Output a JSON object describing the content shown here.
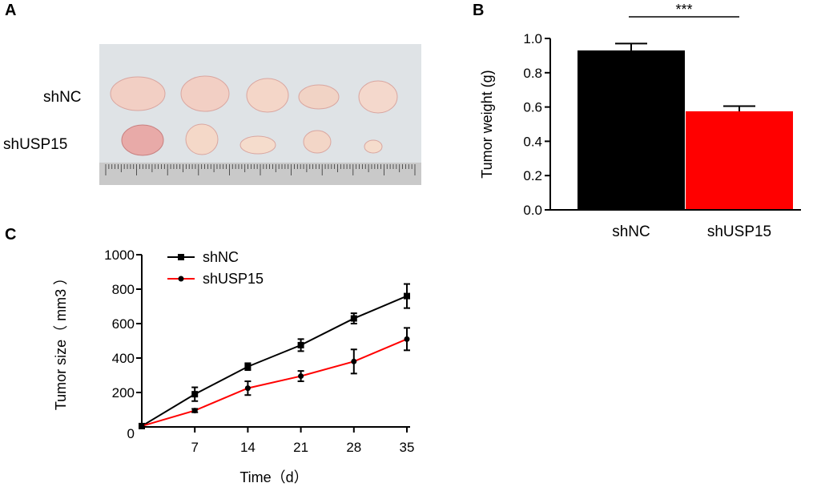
{
  "panels": {
    "a": {
      "letter": "A",
      "row_labels": [
        "shNC",
        "shUSP15"
      ]
    },
    "b": {
      "letter": "B"
    },
    "c": {
      "letter": "C"
    }
  },
  "colors": {
    "shNC": "#000000",
    "shUSP15": "#ff0000",
    "photo_bg": "#dfe3e6",
    "tissue": "#f2cfc4"
  },
  "chart_data": [
    {
      "type": "bar",
      "title": "",
      "xlabel": "",
      "ylabel": "Tumor weight (g)",
      "categories": [
        "shNC",
        "shUSP15"
      ],
      "values": [
        0.93,
        0.575
      ],
      "errors": [
        0.04,
        0.03
      ],
      "ylim": [
        0,
        1.0
      ],
      "yticks": [
        "0.0",
        "0.2",
        "0.4",
        "0.6",
        "0.8",
        "1.0"
      ],
      "significance": "***"
    },
    {
      "type": "line",
      "title": "",
      "xlabel": "Time（d）",
      "ylabel": "Tumor size（ mm3 ）",
      "x": [
        0,
        7,
        14,
        21,
        28,
        35
      ],
      "xticks": [
        "7",
        "14",
        "21",
        "28",
        "35"
      ],
      "yticks": [
        "0",
        "200",
        "400",
        "600",
        "800",
        "1000"
      ],
      "ylim": [
        0,
        1000
      ],
      "legend_position": "top-left",
      "series": [
        {
          "name": "shNC",
          "marker": "square",
          "values": [
            5,
            190,
            350,
            475,
            630,
            760
          ],
          "errors": [
            0,
            40,
            20,
            35,
            30,
            70
          ]
        },
        {
          "name": "shUSP15",
          "marker": "circle",
          "values": [
            5,
            95,
            225,
            295,
            380,
            510
          ],
          "errors": [
            0,
            10,
            40,
            30,
            70,
            65
          ]
        }
      ]
    }
  ]
}
